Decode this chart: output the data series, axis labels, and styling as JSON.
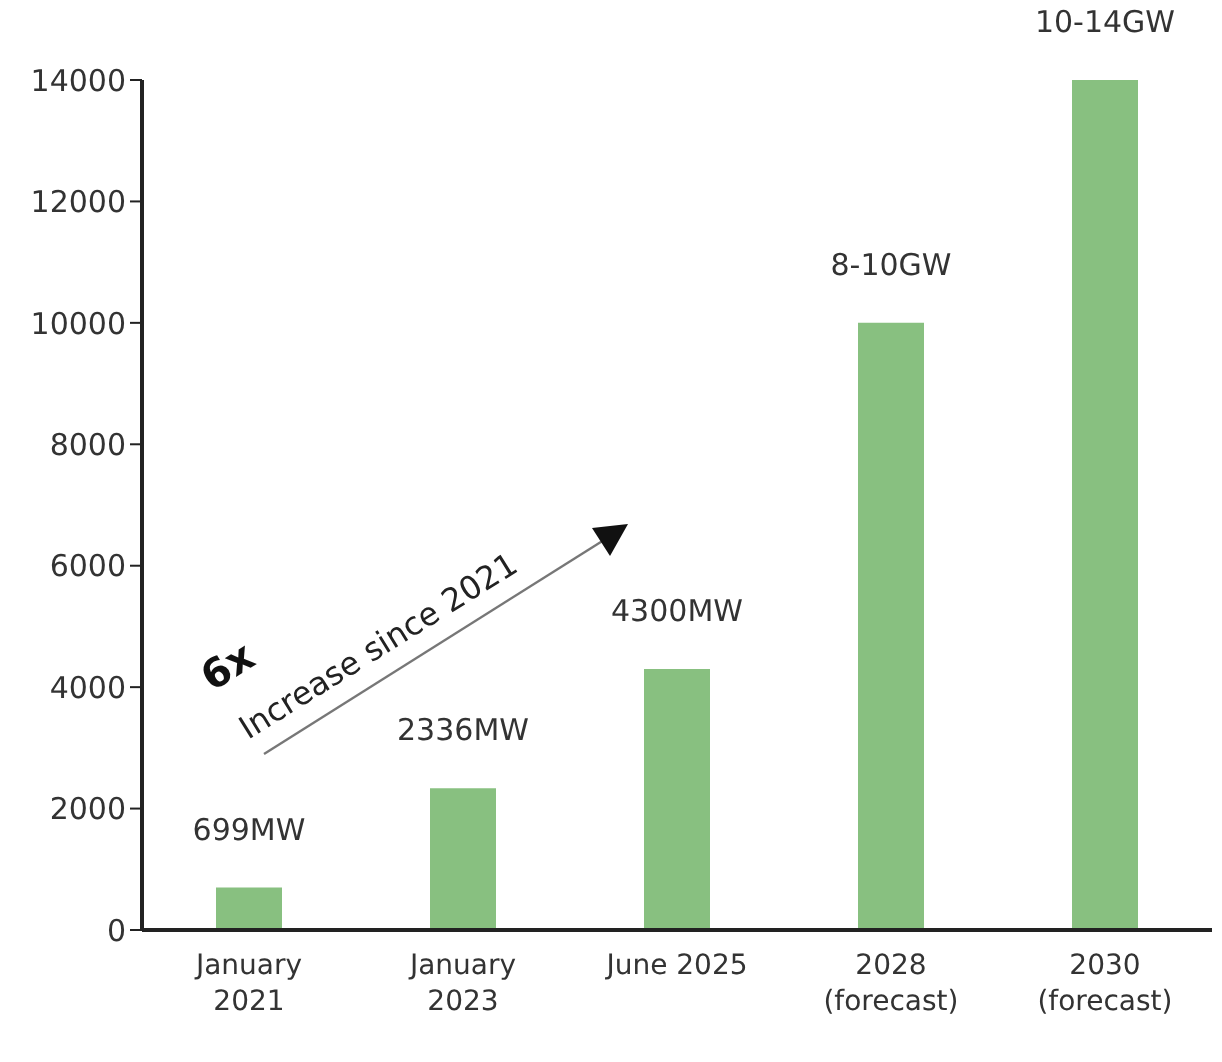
{
  "chart_data": {
    "type": "bar",
    "categories": [
      "January\n2021",
      "January\n2023",
      "June 2025",
      "2028\n(forecast)",
      "2030\n(forecast)"
    ],
    "values": [
      699,
      2336,
      4300,
      10000,
      14000
    ],
    "value_labels": [
      "699MW",
      "2336MW",
      "4300MW",
      "8-10GW",
      "10-14GW"
    ],
    "colors": [
      "#88c080",
      "#88c080",
      "#88c080",
      "#88c080",
      "#88c080"
    ],
    "ylim": [
      0,
      14000
    ],
    "yticks": [
      0,
      2000,
      4000,
      6000,
      8000,
      10000,
      12000,
      14000
    ],
    "grid": false,
    "annotations": [
      "6x",
      "Increase since 2021"
    ]
  }
}
